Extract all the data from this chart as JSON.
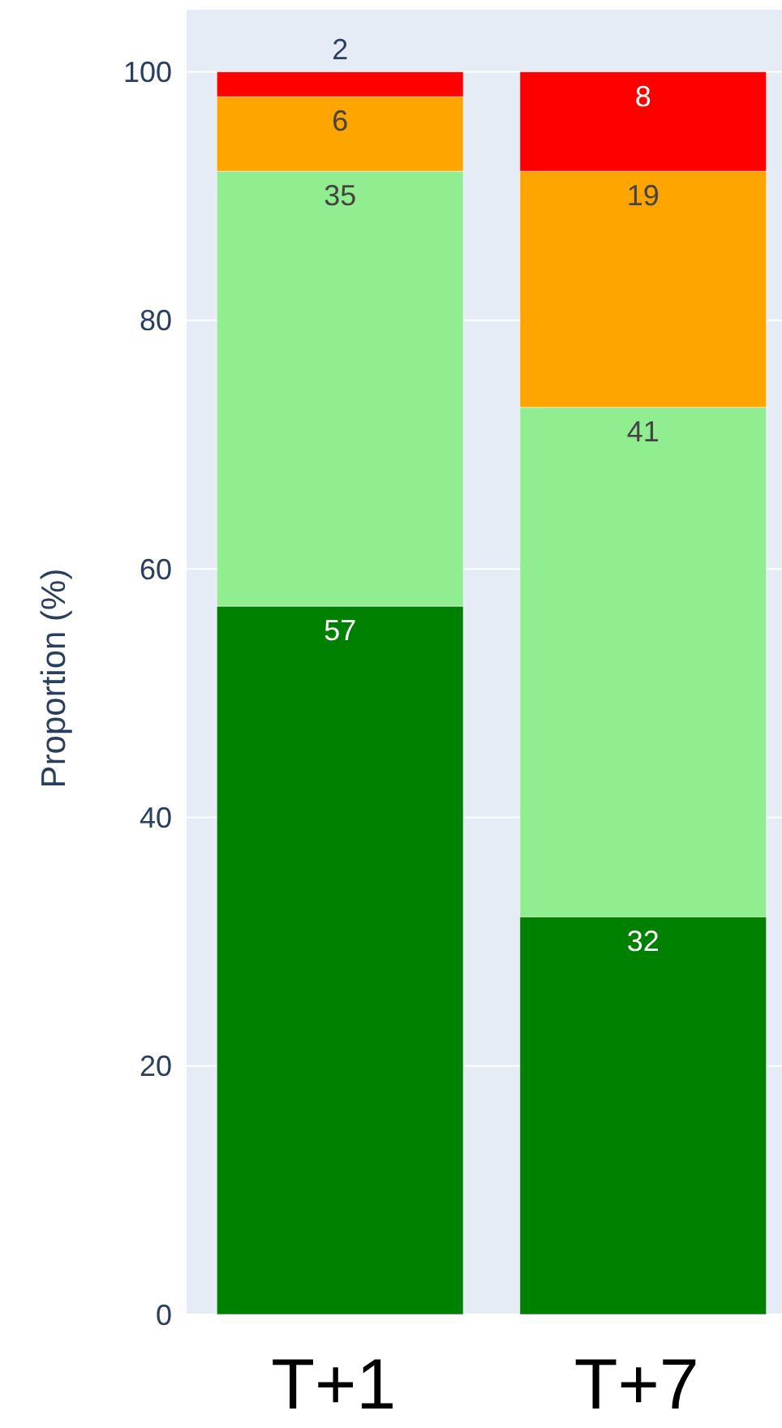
{
  "chart_data": {
    "type": "bar",
    "categories": [
      "T+1",
      "T+7"
    ],
    "stacked": true,
    "series": [
      {
        "color": "#008000",
        "values": [
          57,
          32
        ]
      },
      {
        "color": "#90ee90",
        "values": [
          35,
          41
        ]
      },
      {
        "color": "#ffa500",
        "values": [
          6,
          19
        ]
      },
      {
        "color": "#ff0000",
        "values": [
          2,
          8
        ]
      }
    ],
    "ylabel": "Proportion (%)",
    "ylim": [
      0,
      105
    ],
    "yticks": [
      0,
      20,
      40,
      60,
      80,
      100
    ],
    "grid": "y",
    "data_labels": true
  }
}
